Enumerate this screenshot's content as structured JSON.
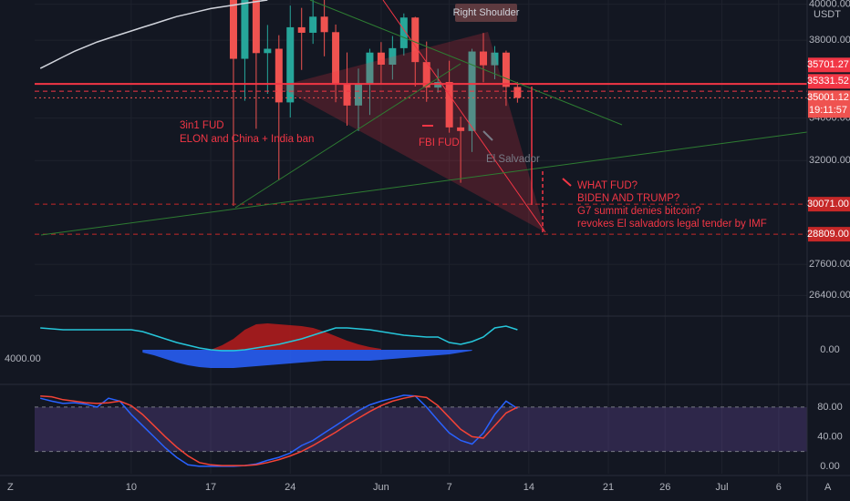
{
  "chart_data": [
    {
      "type": "candlestick",
      "categories": [
        null,
        null,
        null,
        null,
        null,
        null,
        null,
        null,
        "10",
        null,
        null,
        null,
        null,
        null,
        null,
        "17",
        null,
        null,
        null,
        null,
        null,
        null,
        "24",
        null,
        null,
        null,
        null,
        null,
        null,
        null,
        "Jun",
        null,
        null,
        null,
        null,
        null,
        "7",
        null,
        null,
        null,
        null,
        null,
        null,
        "14",
        null,
        null,
        null,
        null,
        null,
        null,
        "21",
        null,
        null,
        null,
        null,
        "26",
        null,
        null,
        null,
        null,
        "Jul",
        null,
        null,
        null,
        null,
        "6",
        null,
        null
      ],
      "open": [
        null,
        null,
        null,
        null,
        null,
        null,
        null,
        null,
        null,
        null,
        null,
        null,
        null,
        null,
        null,
        null,
        null,
        42909,
        37002,
        40782,
        37304,
        37536,
        34771,
        38705,
        38402,
        39295,
        38436,
        35697,
        34616,
        35678,
        37332,
        36693,
        37568,
        39246,
        36829,
        35514,
        35796,
        33552,
        33380,
        37389,
        36662,
        37331,
        35546,
        null,
        null,
        null,
        null,
        null,
        null,
        null,
        null,
        null,
        null,
        null,
        null,
        null,
        null,
        null,
        null,
        null,
        null,
        null,
        null,
        null,
        null,
        null,
        null,
        null
      ],
      "high": [
        null,
        null,
        null,
        null,
        null,
        null,
        null,
        null,
        null,
        null,
        null,
        null,
        null,
        null,
        null,
        null,
        null,
        43546,
        42451,
        42200,
        38830,
        38270,
        39920,
        39791,
        40841,
        40411,
        38856,
        37338,
        36488,
        37534,
        37894,
        38225,
        39476,
        39289,
        37925,
        36480,
        36900,
        34069,
        37534,
        38392,
        37680,
        37437,
        35800,
        null,
        null,
        null,
        null,
        null,
        null,
        null,
        null,
        null,
        null,
        null,
        null,
        null,
        null,
        null,
        null,
        null,
        null,
        null,
        null,
        null,
        null,
        null,
        null,
        null
      ],
      "low": [
        null,
        null,
        null,
        null,
        null,
        null,
        null,
        null,
        null,
        null,
        null,
        null,
        null,
        null,
        null,
        null,
        null,
        30000,
        34850,
        33488,
        35200,
        31111,
        34031,
        36419,
        37800,
        37134,
        34779,
        33632,
        33379,
        34153,
        35666,
        35920,
        37170,
        35567,
        34800,
        35258,
        33300,
        31004,
        32396,
        35782,
        35936,
        34600,
        34757,
        null,
        null,
        null,
        null,
        null,
        null,
        null,
        null,
        null,
        null,
        null,
        null,
        null,
        null,
        null,
        null,
        null,
        null,
        null,
        null,
        null,
        null,
        null,
        null,
        null
      ],
      "close": [
        null,
        null,
        null,
        null,
        null,
        null,
        null,
        null,
        null,
        null,
        null,
        null,
        null,
        null,
        null,
        null,
        null,
        37002,
        40782,
        37304,
        37536,
        34771,
        38705,
        38402,
        39295,
        38436,
        35697,
        34616,
        35678,
        37332,
        36693,
        37568,
        39246,
        36829,
        35514,
        35796,
        33552,
        33380,
        37389,
        36662,
        37331,
        35546,
        35001.12,
        null,
        null,
        null,
        null,
        null,
        null,
        null,
        null,
        null,
        null,
        null,
        null,
        null,
        null,
        null,
        null,
        null,
        null,
        null,
        null,
        null,
        null,
        null,
        null,
        null
      ],
      "up_color": "#26a69a",
      "down_color": "#ef5350",
      "overlay": {
        "color": "#d1d4dc",
        "values": [
          36500,
          36800,
          37100,
          37400,
          37650,
          37900,
          38100,
          38300,
          38500,
          38700,
          38900,
          39100,
          39300,
          39450,
          39600,
          39750,
          39850,
          39950,
          40050,
          40150,
          40240,
          null,
          null,
          null,
          null,
          null,
          null,
          null,
          null,
          null,
          null,
          null,
          null,
          null,
          null,
          null,
          null,
          null,
          null,
          null,
          null,
          null,
          null,
          null,
          null,
          null,
          null,
          null,
          null,
          null,
          null,
          null,
          null,
          null,
          null,
          null,
          null,
          null,
          null,
          null,
          null,
          null,
          null,
          null,
          null,
          null,
          null,
          null
        ]
      },
      "ylim": [
        25700,
        40240
      ],
      "log_scale": true,
      "grid": true,
      "yticks": [
        {
          "value": 40000,
          "label": "40000.00"
        },
        {
          "value": 38000,
          "label": "38000.00"
        },
        {
          "value": 34000,
          "label": "34000.00"
        },
        {
          "value": 32000,
          "label": "32000.00"
        },
        {
          "value": 27600,
          "label": "27600.00"
        },
        {
          "value": 26400,
          "label": "26400.00"
        }
      ],
      "y_unit": "USDT",
      "levels": [
        {
          "value": 35701.27,
          "style": "solid",
          "color": "#f23645"
        },
        {
          "value": 35331.52,
          "style": "dashed",
          "color": "#f23645"
        },
        {
          "value": 35001.12,
          "style": "dotted",
          "color": "#ef5350",
          "time": "19:11:57"
        },
        {
          "value": 30071,
          "label": "30071.00",
          "style": "dashed",
          "color": "#c62828"
        },
        {
          "value": 28809,
          "label": "28809.00",
          "style": "dashed",
          "color": "#c62828"
        }
      ],
      "annotations": [
        "Right Shoulder",
        "3in1 FUD",
        "ELON and China + India ban",
        "FBI FUD",
        "El Salvador",
        "WHAT FUD?",
        "BIDEN AND TRUMP?",
        "G7 summit denies bitcoin?",
        "revokes El salvadors legal tender by IMF"
      ]
    },
    {
      "type": "line",
      "label": "4000.00",
      "ylim": [
        -36,
        34
      ],
      "yticks": [
        {
          "value": 0,
          "label": "0.00"
        }
      ],
      "series": [
        {
          "color": "#b71c1c",
          "fill": true,
          "values": [
            null,
            null,
            null,
            null,
            null,
            null,
            null,
            null,
            null,
            null,
            null,
            null,
            null,
            null,
            null,
            0,
            5,
            12,
            22,
            28,
            29,
            28,
            27,
            26,
            24,
            20,
            15,
            10,
            6,
            3,
            1,
            null,
            null,
            null,
            null,
            null,
            null,
            null,
            null,
            null,
            null,
            null,
            null,
            null,
            null,
            null,
            null,
            null,
            null,
            null,
            null,
            null,
            null,
            null,
            null,
            null,
            null,
            null,
            null,
            null,
            null,
            null,
            null,
            null,
            null,
            null,
            null,
            null
          ]
        },
        {
          "color": "#2962ff",
          "fill": true,
          "values": [
            null,
            null,
            null,
            null,
            null,
            null,
            null,
            null,
            null,
            -3,
            -6,
            -10,
            -14,
            -17,
            -19,
            -20,
            -20,
            -20,
            -19,
            -18,
            -17,
            -16,
            -15,
            -14,
            -13,
            -12,
            -12,
            -12,
            -12,
            -12,
            -11,
            -10,
            -9,
            -8,
            -7,
            -6,
            -5,
            -3,
            -1,
            null,
            null,
            null,
            null,
            null,
            null,
            null,
            null,
            null,
            null,
            null,
            null,
            null,
            null,
            null,
            null,
            null,
            null,
            null,
            null,
            null,
            null,
            null,
            null,
            null,
            null,
            null,
            null,
            null
          ]
        },
        {
          "color": "#26c6da",
          "values": [
            24,
            23,
            22,
            22,
            22,
            22,
            22,
            22,
            22,
            20,
            16,
            12,
            8,
            5,
            2,
            0,
            -1,
            -1,
            0,
            2,
            4,
            6,
            9,
            12,
            16,
            20,
            24,
            24,
            23,
            22,
            20,
            18,
            16,
            15,
            14,
            14,
            8,
            6,
            9,
            14,
            24,
            26,
            22,
            null,
            null,
            null,
            null,
            null,
            null,
            null,
            null,
            null,
            null,
            null,
            null,
            null,
            null,
            null,
            null,
            null,
            null,
            null,
            null,
            null,
            null,
            null,
            null,
            null
          ]
        }
      ]
    },
    {
      "type": "line",
      "ylim": [
        -10,
        107
      ],
      "yticks": [
        {
          "value": 80,
          "label": "80.00"
        },
        {
          "value": 40,
          "label": "40.00"
        },
        {
          "value": 0,
          "label": "0.00"
        }
      ],
      "bands": [
        20,
        80
      ],
      "band_color": "#7e57c2",
      "series": [
        {
          "color": "#2962ff",
          "values": [
            92,
            88,
            85,
            86,
            84,
            80,
            92,
            88,
            70,
            55,
            40,
            25,
            12,
            2,
            0,
            0,
            0,
            0,
            1,
            3,
            8,
            12,
            18,
            28,
            35,
            45,
            55,
            65,
            75,
            83,
            88,
            92,
            96,
            95,
            80,
            62,
            45,
            35,
            30,
            45,
            70,
            88,
            78,
            null,
            null,
            null,
            null,
            null,
            null,
            null,
            null,
            null,
            null,
            null,
            null,
            null,
            null,
            null,
            null,
            null,
            null,
            null,
            null,
            null,
            null,
            null,
            null,
            null
          ]
        },
        {
          "color": "#f44336",
          "values": [
            95,
            94,
            90,
            88,
            86,
            85,
            86,
            88,
            82,
            70,
            55,
            40,
            26,
            14,
            5,
            2,
            1,
            1,
            1,
            2,
            5,
            9,
            14,
            20,
            28,
            37,
            46,
            56,
            65,
            74,
            82,
            88,
            92,
            95,
            93,
            82,
            66,
            50,
            40,
            38,
            55,
            72,
            80,
            null,
            null,
            null,
            null,
            null,
            null,
            null,
            null,
            null,
            null,
            null,
            null,
            null,
            null,
            null,
            null,
            null,
            null,
            null,
            null,
            null,
            null,
            null,
            null,
            null
          ]
        }
      ]
    }
  ],
  "toolbar": {
    "left": "Z",
    "right": "A"
  }
}
